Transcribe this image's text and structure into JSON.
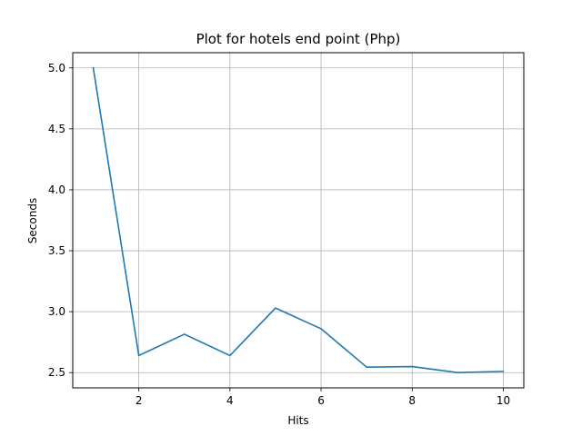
{
  "chart_data": {
    "type": "line",
    "title": "Plot for hotels end point (Php)",
    "xlabel": "Hits",
    "ylabel": "Seconds",
    "x": [
      1,
      2,
      3,
      4,
      5,
      6,
      7,
      8,
      9,
      10
    ],
    "series": [
      {
        "values": [
          5.0,
          2.64,
          2.815,
          2.64,
          3.03,
          2.86,
          2.545,
          2.55,
          2.5,
          2.51
        ]
      }
    ],
    "xlim": [
      0.55,
      10.45
    ],
    "ylim": [
      2.375,
      5.125
    ],
    "xticks": [
      2,
      4,
      6,
      8,
      10
    ],
    "xtick_labels": [
      "2",
      "4",
      "6",
      "8",
      "10"
    ],
    "yticks": [
      2.5,
      3.0,
      3.5,
      4.0,
      4.5,
      5.0
    ],
    "ytick_labels": [
      "2.5",
      "3.0",
      "3.5",
      "4.0",
      "4.5",
      "5.0"
    ],
    "grid": true,
    "colors": {
      "line": "#1f77b4",
      "grid": "#b0b0b0",
      "axes": "#000000"
    }
  }
}
